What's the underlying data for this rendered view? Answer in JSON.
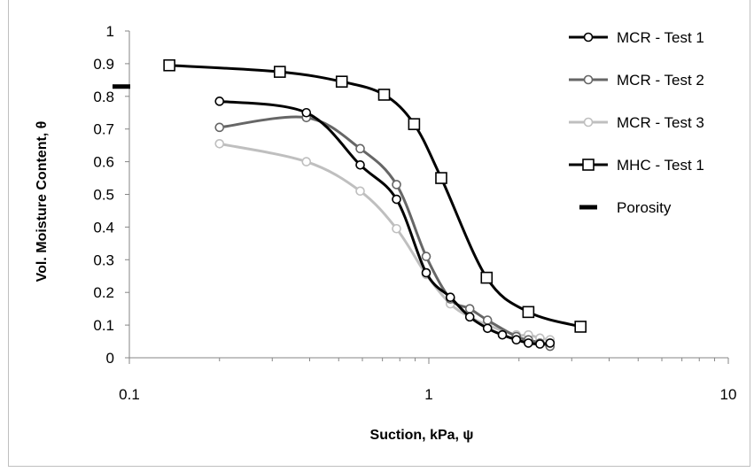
{
  "chart_data": {
    "type": "scatter",
    "xscale": "log",
    "xlim": [
      0.1,
      10
    ],
    "ylim": [
      0,
      1
    ],
    "xticks": [
      "0.1",
      "1",
      "10"
    ],
    "yticks": [
      "0",
      "0.1",
      "0.2",
      "0.3",
      "0.4",
      "0.5",
      "0.6",
      "0.7",
      "0.8",
      "0.9",
      "1"
    ],
    "xlabel": "Suction, kPa, ψ",
    "ylabel": "Vol. Moisture Content, θ",
    "grid": false,
    "legend": "right",
    "series": [
      {
        "name": "MCR - Test 1",
        "color": "#000000",
        "marker": "circle",
        "line": "smooth",
        "x": [
          0.2,
          0.39,
          0.59,
          0.78,
          0.98,
          1.18,
          1.37,
          1.57,
          1.76,
          1.96,
          2.15,
          2.35,
          2.54
        ],
        "y": [
          0.785,
          0.75,
          0.59,
          0.485,
          0.26,
          0.185,
          0.125,
          0.09,
          0.07,
          0.055,
          0.045,
          0.042,
          0.045
        ]
      },
      {
        "name": "MCR - Test 2",
        "color": "#666666",
        "marker": "circle",
        "line": "smooth",
        "x": [
          0.2,
          0.39,
          0.59,
          0.78,
          0.98,
          1.18,
          1.37,
          1.57,
          1.96,
          2.15,
          2.35,
          2.54
        ],
        "y": [
          0.705,
          0.735,
          0.64,
          0.53,
          0.31,
          0.18,
          0.15,
          0.115,
          0.065,
          0.055,
          0.045,
          0.035
        ]
      },
      {
        "name": "MCR - Test 3",
        "color": "#bfbfbf",
        "marker": "circle",
        "line": "smooth",
        "x": [
          0.2,
          0.39,
          0.59,
          0.78,
          0.98,
          1.18,
          1.37,
          1.57,
          1.96,
          2.15,
          2.35,
          2.54
        ],
        "y": [
          0.655,
          0.6,
          0.51,
          0.395,
          0.255,
          0.165,
          0.125,
          0.1,
          0.07,
          0.07,
          0.06,
          0.055
        ]
      },
      {
        "name": "MHC - Test 1",
        "color": "#000000",
        "marker": "square",
        "line": "smooth",
        "x": [
          0.136,
          0.318,
          0.512,
          0.709,
          0.893,
          1.1,
          1.56,
          2.15,
          3.21
        ],
        "y": [
          0.895,
          0.875,
          0.845,
          0.805,
          0.715,
          0.55,
          0.245,
          0.14,
          0.095
        ]
      },
      {
        "name": "Porosity",
        "color": "#000000",
        "marker": "dash",
        "line": "none",
        "x": [
          0.1
        ],
        "y": [
          0.83
        ]
      }
    ]
  }
}
